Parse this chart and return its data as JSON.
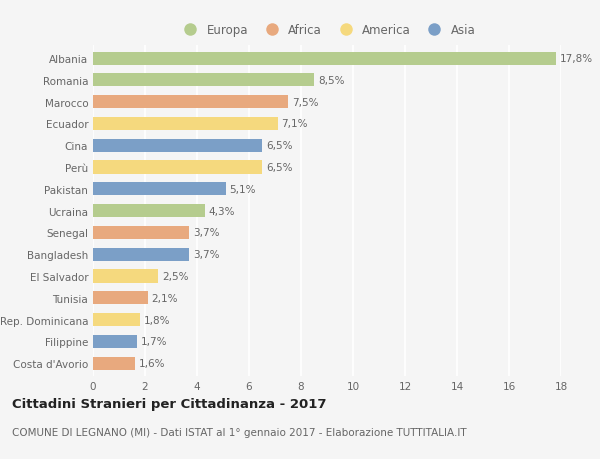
{
  "categories": [
    "Albania",
    "Romania",
    "Marocco",
    "Ecuador",
    "Cina",
    "Perù",
    "Pakistan",
    "Ucraina",
    "Senegal",
    "Bangladesh",
    "El Salvador",
    "Tunisia",
    "Rep. Dominicana",
    "Filippine",
    "Costa d'Avorio"
  ],
  "values": [
    17.8,
    8.5,
    7.5,
    7.1,
    6.5,
    6.5,
    5.1,
    4.3,
    3.7,
    3.7,
    2.5,
    2.1,
    1.8,
    1.7,
    1.6
  ],
  "labels": [
    "17,8%",
    "8,5%",
    "7,5%",
    "7,1%",
    "6,5%",
    "6,5%",
    "5,1%",
    "4,3%",
    "3,7%",
    "3,7%",
    "2,5%",
    "2,1%",
    "1,8%",
    "1,7%",
    "1,6%"
  ],
  "continents": [
    "Europa",
    "Europa",
    "Africa",
    "America",
    "Asia",
    "America",
    "Asia",
    "Europa",
    "Africa",
    "Asia",
    "America",
    "Africa",
    "America",
    "Asia",
    "Africa"
  ],
  "continent_colors": {
    "Europa": "#b5cc8e",
    "Africa": "#e8a97e",
    "America": "#f5d97e",
    "Asia": "#7b9fc7"
  },
  "legend_order": [
    "Europa",
    "Africa",
    "America",
    "Asia"
  ],
  "xlim": [
    0,
    18
  ],
  "xticks": [
    0,
    2,
    4,
    6,
    8,
    10,
    12,
    14,
    16,
    18
  ],
  "title": "Cittadini Stranieri per Cittadinanza - 2017",
  "subtitle": "COMUNE DI LEGNANO (MI) - Dati ISTAT al 1° gennaio 2017 - Elaborazione TUTTITALIA.IT",
  "bg_color": "#f5f5f5",
  "bar_height": 0.6,
  "title_fontsize": 9.5,
  "subtitle_fontsize": 7.5,
  "label_fontsize": 7.5,
  "tick_fontsize": 7.5,
  "legend_fontsize": 8.5,
  "text_color": "#666666",
  "title_color": "#222222",
  "grid_color": "#ffffff"
}
